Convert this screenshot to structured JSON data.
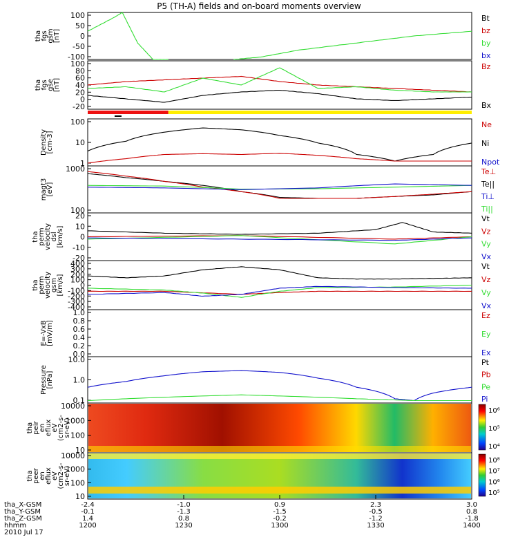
{
  "title": "P5 (TH-A) fields and on-board moments overview",
  "colors": {
    "black": "#000000",
    "red": "#cc0000",
    "green": "#33dd33",
    "blue": "#1111cc",
    "yellow": "#ffee00"
  },
  "chart_data": [
    {
      "type": "line",
      "panel": "fgs-gsm",
      "ylabel": [
        "tha",
        "fgs",
        "gsm",
        "[nT]"
      ],
      "ylim": [
        -100,
        100
      ],
      "ticks": [
        "100",
        "50",
        "0",
        "-50",
        "-100"
      ],
      "legend": [
        "Bt",
        "bz",
        "by",
        "bx"
      ],
      "series": [
        {
          "name": "by",
          "color": "green",
          "x": [
            0,
            0.07,
            0.09,
            0.13,
            0.17,
            0.21
          ],
          "y": [
            20,
            80,
            100,
            -30,
            -100,
            -100
          ]
        },
        {
          "name": "by",
          "color": "green",
          "x": [
            0.38,
            0.45,
            0.55,
            0.7,
            0.85,
            1.0
          ],
          "y": [
            -100,
            -90,
            -60,
            -30,
            0,
            20
          ]
        }
      ]
    },
    {
      "type": "line",
      "panel": "fgs-gse",
      "ylabel": [
        "tha",
        "fgs",
        "gse",
        "[nT]"
      ],
      "ylim": [
        -40,
        100
      ],
      "ticks": [
        "100",
        "80",
        "60",
        "40",
        "20",
        "0",
        "-20"
      ],
      "legend": [
        "Bz",
        "Bx"
      ],
      "series": [
        {
          "name": "Bz",
          "color": "red",
          "x": [
            0,
            0.1,
            0.2,
            0.3,
            0.4,
            0.5,
            0.6,
            0.7,
            0.8,
            0.9,
            1.0
          ],
          "y": [
            30,
            40,
            45,
            50,
            55,
            40,
            30,
            25,
            20,
            15,
            10
          ]
        },
        {
          "name": "Bx",
          "color": "black",
          "x": [
            0,
            0.1,
            0.2,
            0.3,
            0.4,
            0.5,
            0.6,
            0.7,
            0.8,
            0.9,
            1.0
          ],
          "y": [
            0,
            -10,
            -20,
            0,
            10,
            15,
            5,
            -10,
            -15,
            -10,
            -5
          ]
        },
        {
          "name": "green",
          "color": "green",
          "x": [
            0,
            0.1,
            0.2,
            0.3,
            0.4,
            0.5,
            0.6,
            0.7,
            0.8,
            0.9,
            1.0
          ],
          "y": [
            20,
            25,
            10,
            50,
            30,
            80,
            20,
            25,
            15,
            10,
            10
          ]
        }
      ]
    },
    {
      "type": "line",
      "panel": "density",
      "ylabel": [
        "Density",
        "[cm-3]"
      ],
      "yscale": "log",
      "ylim": [
        0.5,
        150
      ],
      "ticks": [
        "100",
        "10",
        "1"
      ],
      "legend": [
        "Ne",
        "Ni",
        "Npot"
      ],
      "series": [
        {
          "name": "Ni",
          "color": "black",
          "x": [
            0,
            0.1,
            0.2,
            0.3,
            0.4,
            0.5,
            0.6,
            0.7,
            0.8,
            0.9,
            1.0
          ],
          "y": [
            3,
            10,
            30,
            50,
            40,
            20,
            8,
            2,
            0.9,
            2,
            8
          ]
        },
        {
          "name": "Ne",
          "color": "red",
          "x": [
            0,
            0.1,
            0.2,
            0.3,
            0.4,
            0.5,
            0.6,
            0.7,
            0.8,
            0.9,
            1.0
          ],
          "y": [
            0.7,
            1.2,
            2,
            2.2,
            2,
            2.3,
            1.8,
            1.2,
            0.9,
            0.9,
            0.9
          ]
        }
      ]
    },
    {
      "type": "line",
      "panel": "magt3",
      "ylabel": [
        "magt3",
        "[eV]"
      ],
      "yscale": "log",
      "ylim": [
        30,
        2000
      ],
      "ticks": [
        "1000",
        "100"
      ],
      "legend": [
        "Te⊥",
        "Te||",
        "Ti⊥",
        "Ti||"
      ],
      "series": [
        {
          "name": "Te||",
          "color": "black",
          "x": [
            0,
            0.1,
            0.2,
            0.3,
            0.4,
            0.5,
            0.6,
            0.7,
            0.8,
            0.9,
            1.0
          ],
          "y": [
            1000,
            700,
            500,
            350,
            200,
            120,
            110,
            110,
            130,
            150,
            200
          ]
        },
        {
          "name": "Te⊥",
          "color": "red",
          "x": [
            0,
            0.1,
            0.2,
            0.3,
            0.4,
            0.5,
            0.6,
            0.7,
            0.8,
            0.9,
            1.0
          ],
          "y": [
            1200,
            800,
            500,
            300,
            200,
            110,
            110,
            110,
            130,
            160,
            200
          ]
        },
        {
          "name": "Ti⊥",
          "color": "green",
          "x": [
            0,
            0.2,
            0.4,
            0.6,
            0.8,
            1.0
          ],
          "y": [
            350,
            330,
            250,
            260,
            300,
            350
          ]
        },
        {
          "name": "Ti||",
          "color": "blue",
          "x": [
            0,
            0.2,
            0.4,
            0.6,
            0.8,
            1.0
          ],
          "y": [
            300,
            280,
            240,
            280,
            400,
            350
          ]
        }
      ]
    },
    {
      "type": "line",
      "panel": "velocity-perp",
      "ylabel": [
        "tha",
        "perm",
        "velocity",
        "dsl",
        "[km/s]"
      ],
      "ylim": [
        -20,
        20
      ],
      "ticks": [
        "20",
        "10",
        "0",
        "-10",
        "-20"
      ],
      "legend": [
        "Vt",
        "Vz",
        "Vy",
        "Vx"
      ],
      "series": [
        {
          "name": "Vt",
          "color": "black",
          "x": [
            0,
            0.2,
            0.4,
            0.6,
            0.75,
            0.82,
            0.9,
            1.0
          ],
          "y": [
            5,
            3,
            2,
            3,
            6,
            12,
            4,
            3
          ]
        },
        {
          "name": "Vz",
          "color": "red",
          "x": [
            0,
            0.4,
            0.8,
            1.0
          ],
          "y": [
            0,
            1,
            -2,
            0
          ]
        },
        {
          "name": "Vy",
          "color": "green",
          "x": [
            0,
            0.4,
            0.8,
            1.0
          ],
          "y": [
            -2,
            1,
            -6,
            0
          ]
        },
        {
          "name": "Vx",
          "color": "blue",
          "x": [
            0,
            0.4,
            0.8,
            1.0
          ],
          "y": [
            -1,
            -2,
            -3,
            -1
          ]
        }
      ]
    },
    {
      "type": "line",
      "panel": "velocity-gsm",
      "ylabel": [
        "tha",
        "perm",
        "velocity",
        "gsm",
        "[km/s]"
      ],
      "ylim": [
        -400,
        400
      ],
      "ticks": [
        "400",
        "300",
        "200",
        "100",
        "0",
        "-100",
        "-200",
        "-300",
        "-400"
      ],
      "legend": [
        "Vt",
        "Vz",
        "Vy",
        "Vx"
      ],
      "series": [
        {
          "name": "Vt",
          "color": "black",
          "x": [
            0,
            0.1,
            0.2,
            0.3,
            0.4,
            0.5,
            0.6,
            0.7,
            0.8,
            0.9,
            1.0
          ],
          "y": [
            150,
            120,
            150,
            250,
            300,
            250,
            120,
            100,
            100,
            110,
            120
          ]
        },
        {
          "name": "Vz",
          "color": "red",
          "x": [
            0,
            0.2,
            0.4,
            0.5,
            0.6,
            0.8,
            1.0
          ],
          "y": [
            -100,
            -100,
            -150,
            -120,
            -100,
            -100,
            -100
          ]
        },
        {
          "name": "Vy",
          "color": "green",
          "x": [
            0,
            0.2,
            0.3,
            0.4,
            0.5,
            0.6,
            0.8,
            1.0
          ],
          "y": [
            -50,
            -80,
            -130,
            -200,
            -100,
            -40,
            -30,
            0
          ]
        },
        {
          "name": "Vx",
          "color": "blue",
          "x": [
            0,
            0.2,
            0.3,
            0.4,
            0.5,
            0.6,
            0.8,
            1.0
          ],
          "y": [
            -150,
            -120,
            -180,
            -150,
            -50,
            -20,
            -40,
            -50
          ]
        }
      ]
    },
    {
      "type": "line",
      "panel": "efield",
      "ylabel": [
        "E=-VxB",
        "[mV/m]"
      ],
      "ylim": [
        0,
        1
      ],
      "ticks": [
        "1.0",
        "0.8",
        "0.6",
        "0.4",
        "0.2",
        "0.0"
      ],
      "legend": [
        "Ez",
        "Ey",
        "Ex"
      ],
      "series": []
    },
    {
      "type": "line",
      "panel": "pressure",
      "ylabel": [
        "Pressure",
        "[nPa]"
      ],
      "yscale": "log",
      "ylim": [
        0.03,
        8
      ],
      "ticks": [
        "10.0",
        "1.0",
        "0.1"
      ],
      "legend": [
        "Pt",
        "Pb",
        "Pe",
        "Pi"
      ],
      "series": [
        {
          "name": "Pi",
          "color": "blue",
          "x": [
            0,
            0.1,
            0.2,
            0.3,
            0.4,
            0.5,
            0.6,
            0.7,
            0.8,
            0.85,
            0.9,
            1.0
          ],
          "y": [
            0.2,
            0.4,
            0.8,
            1.3,
            1.5,
            1.2,
            0.6,
            0.2,
            0.05,
            0.04,
            0.1,
            0.2
          ]
        },
        {
          "name": "Pe",
          "color": "green",
          "x": [
            0,
            0.2,
            0.4,
            0.5,
            0.7,
            0.85,
            1.0
          ],
          "y": [
            0.04,
            0.06,
            0.08,
            0.07,
            0.05,
            0.04,
            0.04
          ]
        }
      ]
    },
    {
      "type": "heatmap",
      "panel": "ion-spectrogram",
      "ylabel": [
        "tha",
        "peir",
        "en",
        "eflux",
        "eV",
        "(cm2-s-",
        "sr-eV)"
      ],
      "ticks": [
        "10000",
        "1000",
        "100",
        "10"
      ],
      "colorbar_ticks": [
        "10⁶",
        "10⁵",
        "10⁴"
      ]
    },
    {
      "type": "heatmap",
      "panel": "electron-spectrogram",
      "ylabel": [
        "tha",
        "peer",
        "en",
        "eflux",
        "eV",
        "(cm2-s-",
        "sr-eV)"
      ],
      "ticks": [
        "10000",
        "1000",
        "100",
        "10"
      ],
      "colorbar_ticks": [
        "10⁸",
        "10⁷",
        "10⁶",
        "10⁵"
      ]
    }
  ],
  "xaxis": {
    "labels": [
      "tha_X-GSM",
      "tha_Y-GSM",
      "tha_Z-GSM",
      "hhmm",
      "2010 Jul 17"
    ],
    "columns": [
      {
        "x": 0,
        "vals": [
          "-2.4",
          "-0.1",
          "1.4",
          "1200"
        ]
      },
      {
        "x": 0.25,
        "vals": [
          "-1.0",
          "-1.3",
          "0.8",
          "1230"
        ]
      },
      {
        "x": 0.5,
        "vals": [
          "0.9",
          "-1.5",
          "-0.2",
          "1300"
        ]
      },
      {
        "x": 0.75,
        "vals": [
          "2.3",
          "-0.5",
          "-1.2",
          "1330"
        ]
      },
      {
        "x": 1.0,
        "vals": [
          "3.0",
          "0.8",
          "-1.8",
          "1400"
        ]
      }
    ]
  }
}
